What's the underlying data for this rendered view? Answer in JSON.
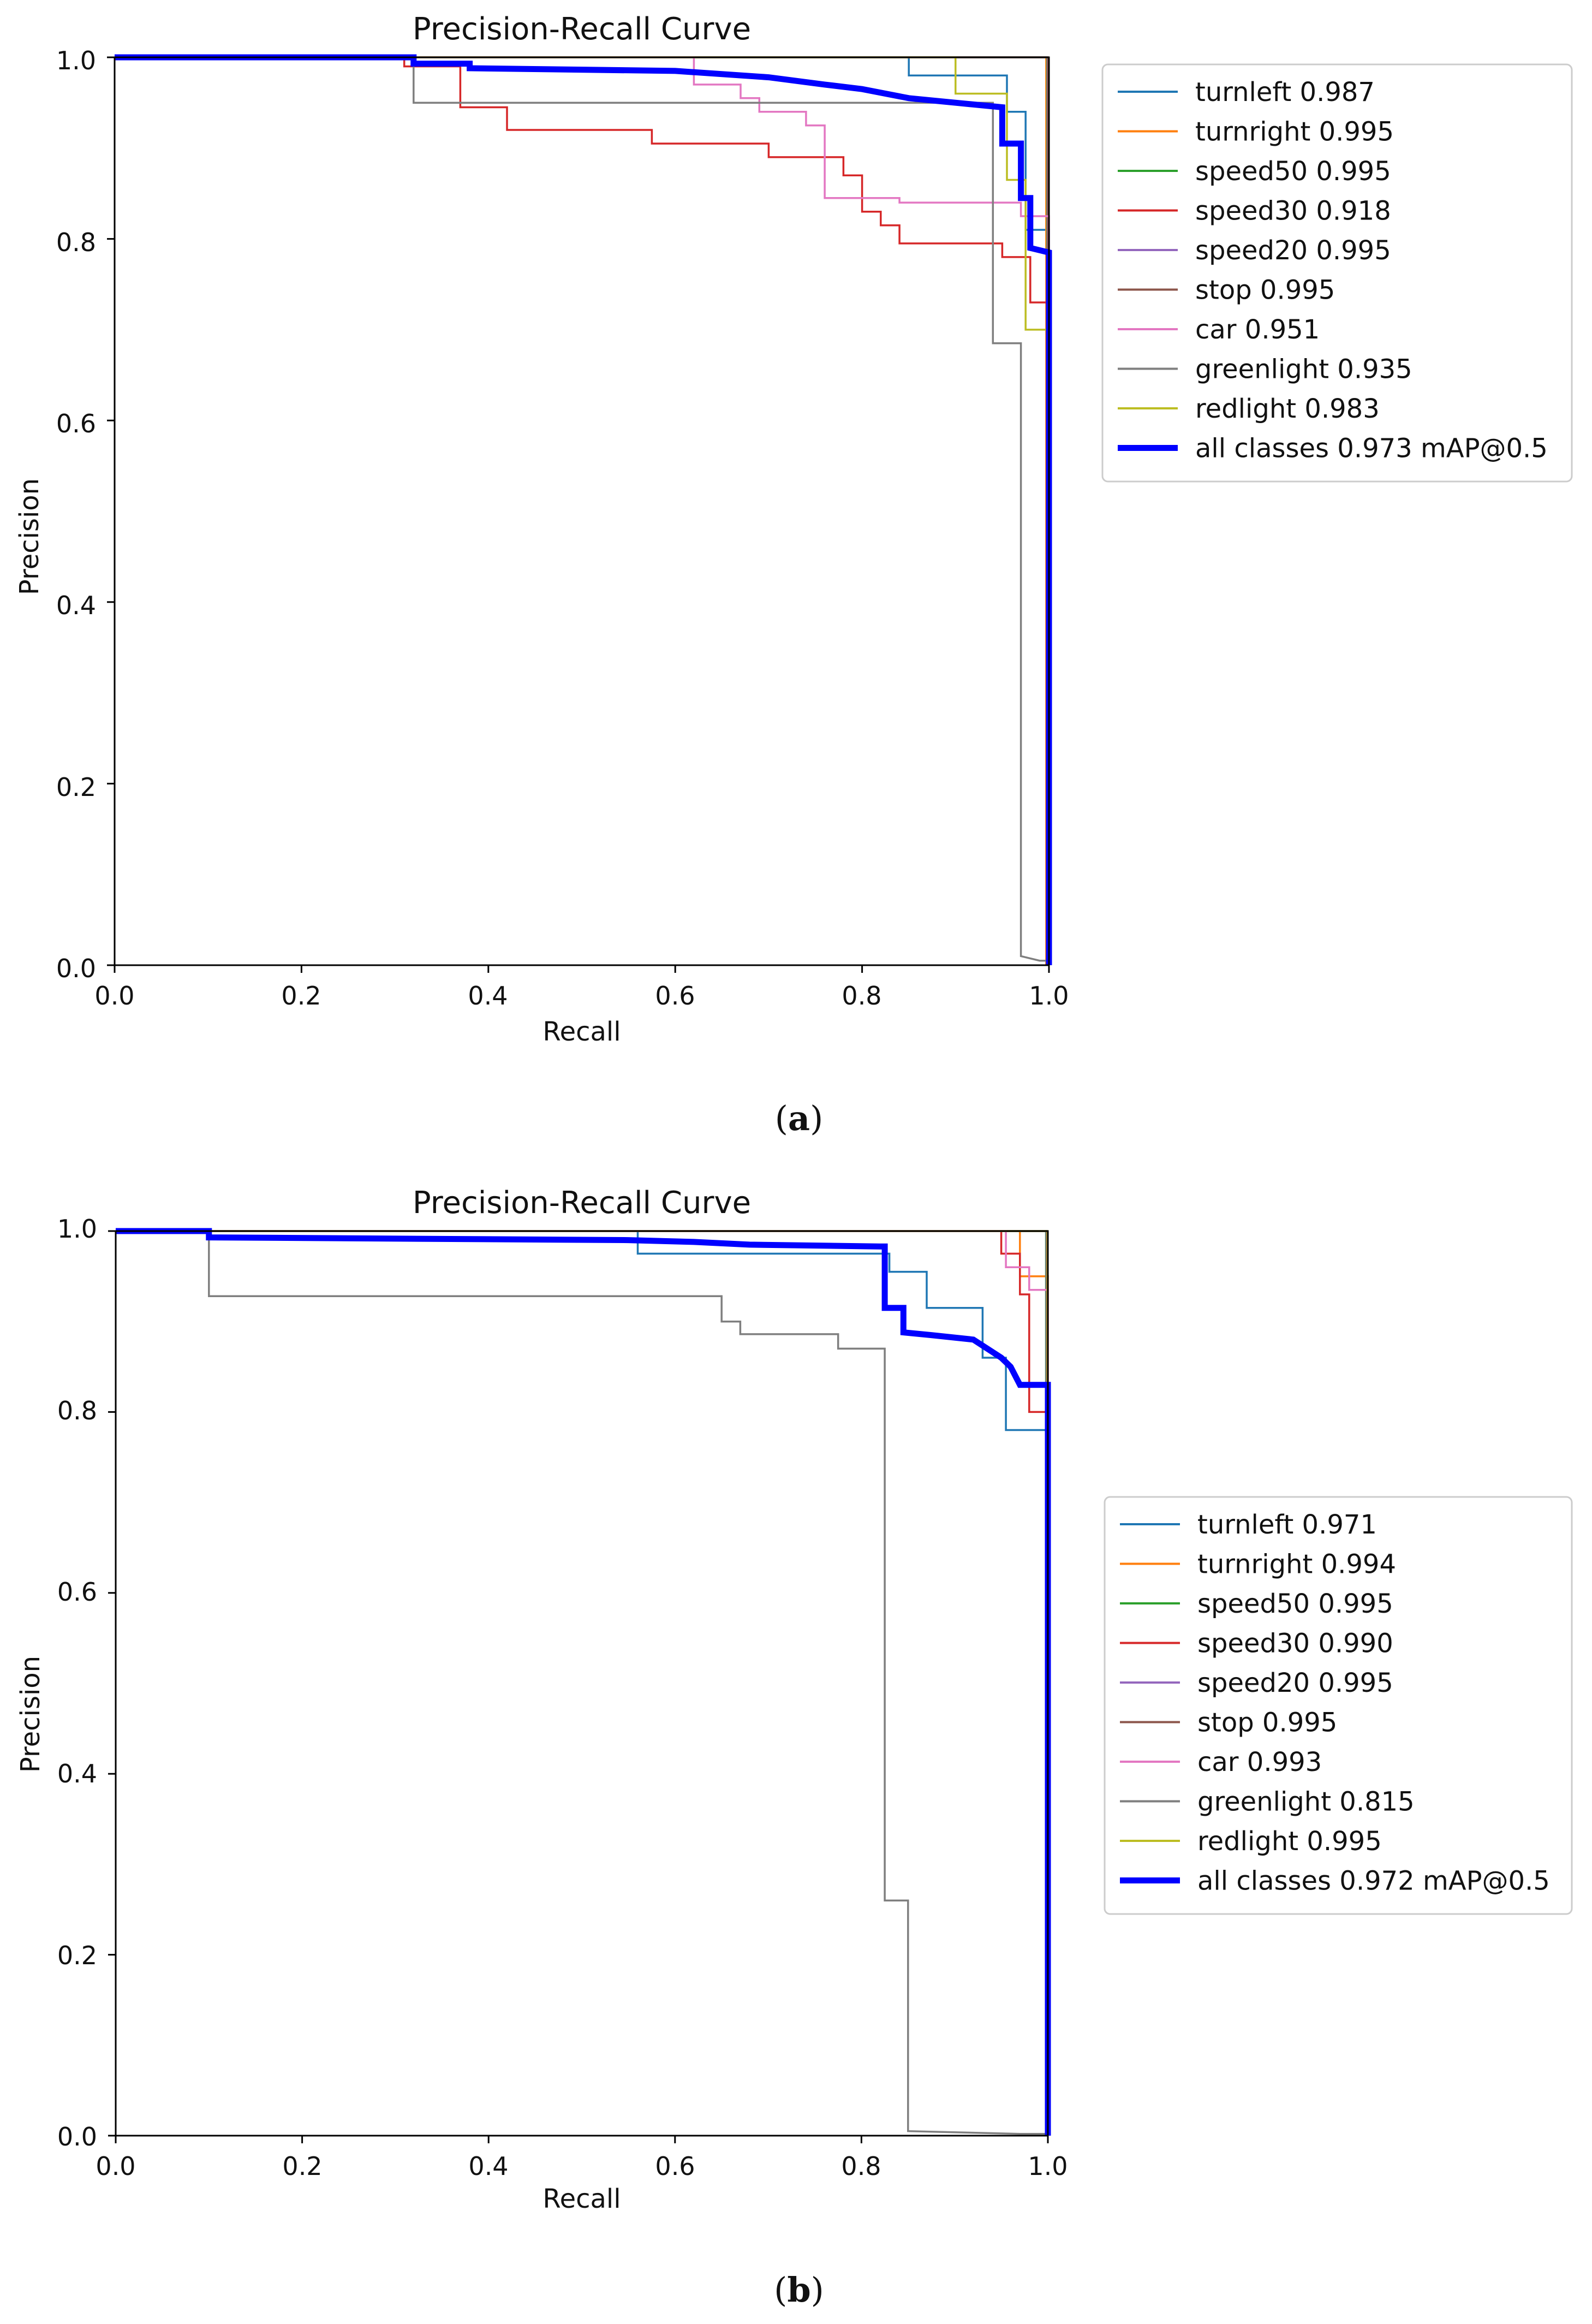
{
  "chart_data": [
    {
      "id": "a",
      "type": "line",
      "title": "Precision-Recall Curve",
      "xlabel": "Recall",
      "ylabel": "Precision",
      "xlim": [
        0,
        1
      ],
      "ylim": [
        0,
        1
      ],
      "xticks": [
        "0.0",
        "0.2",
        "0.4",
        "0.6",
        "0.8",
        "1.0"
      ],
      "yticks": [
        "0.0",
        "0.2",
        "0.4",
        "0.6",
        "0.8",
        "1.0"
      ],
      "caption": {
        "open": "(",
        "letter": "a",
        "close": ")"
      },
      "legend_position": "outside-right-top",
      "series": [
        {
          "name": "turnleft",
          "ap": "0.987",
          "color": "#1f77b4",
          "width": "thin",
          "points": [
            [
              0,
              1
            ],
            [
              0.85,
              1
            ],
            [
              0.85,
              0.98
            ],
            [
              0.955,
              0.98
            ],
            [
              0.955,
              0.94
            ],
            [
              0.975,
              0.94
            ],
            [
              0.975,
              0.81
            ],
            [
              1.0,
              0.81
            ],
            [
              1.0,
              0
            ]
          ]
        },
        {
          "name": "turnright",
          "ap": "0.995",
          "color": "#ff7f0e",
          "width": "thin",
          "points": [
            [
              0,
              1
            ],
            [
              0.997,
              1
            ],
            [
              0.997,
              0
            ]
          ]
        },
        {
          "name": "speed50",
          "ap": "0.995",
          "color": "#2ca02c",
          "width": "thin",
          "points": [
            [
              0,
              1
            ],
            [
              0.998,
              1
            ],
            [
              0.998,
              0
            ]
          ]
        },
        {
          "name": "speed30",
          "ap": "0.918",
          "color": "#d62728",
          "width": "thin",
          "points": [
            [
              0,
              1
            ],
            [
              0.31,
              1
            ],
            [
              0.31,
              0.99
            ],
            [
              0.37,
              0.99
            ],
            [
              0.37,
              0.945
            ],
            [
              0.42,
              0.945
            ],
            [
              0.42,
              0.92
            ],
            [
              0.575,
              0.92
            ],
            [
              0.575,
              0.905
            ],
            [
              0.7,
              0.905
            ],
            [
              0.7,
              0.89
            ],
            [
              0.78,
              0.89
            ],
            [
              0.78,
              0.87
            ],
            [
              0.8,
              0.87
            ],
            [
              0.8,
              0.83
            ],
            [
              0.82,
              0.83
            ],
            [
              0.82,
              0.815
            ],
            [
              0.84,
              0.815
            ],
            [
              0.84,
              0.795
            ],
            [
              0.95,
              0.795
            ],
            [
              0.95,
              0.78
            ],
            [
              0.98,
              0.78
            ],
            [
              0.98,
              0.73
            ],
            [
              1.0,
              0.73
            ],
            [
              1.0,
              0
            ]
          ]
        },
        {
          "name": "speed20",
          "ap": "0.995",
          "color": "#9467bd",
          "width": "thin",
          "points": [
            [
              0,
              1
            ],
            [
              0.9985,
              1
            ],
            [
              0.9985,
              0
            ]
          ]
        },
        {
          "name": "stop",
          "ap": "0.995",
          "color": "#8c564b",
          "width": "thin",
          "points": [
            [
              0,
              1
            ],
            [
              0.999,
              1
            ],
            [
              0.999,
              0
            ]
          ]
        },
        {
          "name": "car",
          "ap": "0.951",
          "color": "#e377c2",
          "width": "thin",
          "points": [
            [
              0,
              1
            ],
            [
              0.62,
              1
            ],
            [
              0.62,
              0.97
            ],
            [
              0.67,
              0.97
            ],
            [
              0.67,
              0.955
            ],
            [
              0.69,
              0.955
            ],
            [
              0.69,
              0.94
            ],
            [
              0.74,
              0.94
            ],
            [
              0.74,
              0.925
            ],
            [
              0.76,
              0.925
            ],
            [
              0.76,
              0.845
            ],
            [
              0.84,
              0.845
            ],
            [
              0.84,
              0.84
            ],
            [
              0.97,
              0.84
            ],
            [
              0.97,
              0.825
            ],
            [
              1.0,
              0.825
            ],
            [
              1.0,
              0
            ]
          ]
        },
        {
          "name": "greenlight",
          "ap": "0.935",
          "color": "#7f7f7f",
          "width": "thin",
          "points": [
            [
              0,
              1
            ],
            [
              0.32,
              1
            ],
            [
              0.32,
              0.95
            ],
            [
              0.94,
              0.95
            ],
            [
              0.94,
              0.685
            ],
            [
              0.97,
              0.685
            ],
            [
              0.97,
              0.01
            ],
            [
              0.99,
              0.005
            ],
            [
              1.0,
              0.005
            ],
            [
              1.0,
              0
            ]
          ]
        },
        {
          "name": "redlight",
          "ap": "0.983",
          "color": "#bcbd22",
          "width": "thin",
          "points": [
            [
              0,
              1
            ],
            [
              0.9,
              1
            ],
            [
              0.9,
              0.96
            ],
            [
              0.955,
              0.96
            ],
            [
              0.955,
              0.865
            ],
            [
              0.975,
              0.865
            ],
            [
              0.975,
              0.7
            ],
            [
              1.0,
              0.7
            ],
            [
              1.0,
              0
            ]
          ]
        },
        {
          "name": "all classes",
          "ap": "0.973 mAP@0.5",
          "color": "#0000ff",
          "width": "thick",
          "points": [
            [
              0,
              1
            ],
            [
              0.32,
              1
            ],
            [
              0.32,
              0.993
            ],
            [
              0.38,
              0.993
            ],
            [
              0.38,
              0.988
            ],
            [
              0.6,
              0.985
            ],
            [
              0.7,
              0.978
            ],
            [
              0.76,
              0.97
            ],
            [
              0.8,
              0.965
            ],
            [
              0.85,
              0.955
            ],
            [
              0.9,
              0.95
            ],
            [
              0.95,
              0.945
            ],
            [
              0.95,
              0.905
            ],
            [
              0.97,
              0.905
            ],
            [
              0.97,
              0.845
            ],
            [
              0.98,
              0.845
            ],
            [
              0.98,
              0.79
            ],
            [
              1.0,
              0.785
            ],
            [
              1.0,
              0
            ]
          ]
        }
      ]
    },
    {
      "id": "b",
      "type": "line",
      "title": "Precision-Recall Curve",
      "xlabel": "Recall",
      "ylabel": "Precision",
      "xlim": [
        0,
        1
      ],
      "ylim": [
        0,
        1
      ],
      "xticks": [
        "0.0",
        "0.2",
        "0.4",
        "0.6",
        "0.8",
        "1.0"
      ],
      "yticks": [
        "0.0",
        "0.2",
        "0.4",
        "0.6",
        "0.8",
        "1.0"
      ],
      "caption": {
        "open": "(",
        "letter": "b",
        "close": ")"
      },
      "legend_position": "outside-right-middle",
      "series": [
        {
          "name": "turnleft",
          "ap": "0.971",
          "color": "#1f77b4",
          "width": "thin",
          "points": [
            [
              0,
              1
            ],
            [
              0.56,
              1
            ],
            [
              0.56,
              0.975
            ],
            [
              0.83,
              0.975
            ],
            [
              0.83,
              0.955
            ],
            [
              0.87,
              0.955
            ],
            [
              0.87,
              0.915
            ],
            [
              0.93,
              0.915
            ],
            [
              0.93,
              0.86
            ],
            [
              0.955,
              0.86
            ],
            [
              0.955,
              0.78
            ],
            [
              1.0,
              0.78
            ],
            [
              1.0,
              0
            ]
          ]
        },
        {
          "name": "turnright",
          "ap": "0.994",
          "color": "#ff7f0e",
          "width": "thin",
          "points": [
            [
              0,
              1
            ],
            [
              0.97,
              1
            ],
            [
              0.97,
              0.95
            ],
            [
              1.0,
              0.95
            ],
            [
              1.0,
              0
            ]
          ]
        },
        {
          "name": "speed50",
          "ap": "0.995",
          "color": "#2ca02c",
          "width": "thin",
          "points": [
            [
              0,
              1
            ],
            [
              0.998,
              1
            ],
            [
              0.998,
              0
            ]
          ]
        },
        {
          "name": "speed30",
          "ap": "0.990",
          "color": "#d62728",
          "width": "thin",
          "points": [
            [
              0,
              1
            ],
            [
              0.95,
              1
            ],
            [
              0.95,
              0.975
            ],
            [
              0.97,
              0.975
            ],
            [
              0.97,
              0.93
            ],
            [
              0.98,
              0.93
            ],
            [
              0.98,
              0.8
            ],
            [
              1.0,
              0.8
            ],
            [
              1.0,
              0
            ]
          ]
        },
        {
          "name": "speed20",
          "ap": "0.995",
          "color": "#9467bd",
          "width": "thin",
          "points": [
            [
              0,
              1
            ],
            [
              0.9985,
              1
            ],
            [
              0.9985,
              0
            ]
          ]
        },
        {
          "name": "stop",
          "ap": "0.995",
          "color": "#8c564b",
          "width": "thin",
          "points": [
            [
              0,
              1
            ],
            [
              0.999,
              1
            ],
            [
              0.999,
              0
            ]
          ]
        },
        {
          "name": "car",
          "ap": "0.993",
          "color": "#e377c2",
          "width": "thin",
          "points": [
            [
              0,
              1
            ],
            [
              0.955,
              1
            ],
            [
              0.955,
              0.96
            ],
            [
              0.98,
              0.96
            ],
            [
              0.98,
              0.935
            ],
            [
              1.0,
              0.935
            ],
            [
              1.0,
              0
            ]
          ]
        },
        {
          "name": "greenlight",
          "ap": "0.815",
          "color": "#7f7f7f",
          "width": "thin",
          "points": [
            [
              0,
              1
            ],
            [
              0.1,
              1
            ],
            [
              0.1,
              0.928
            ],
            [
              0.65,
              0.928
            ],
            [
              0.65,
              0.9
            ],
            [
              0.67,
              0.9
            ],
            [
              0.67,
              0.886
            ],
            [
              0.775,
              0.886
            ],
            [
              0.775,
              0.87
            ],
            [
              0.825,
              0.87
            ],
            [
              0.825,
              0.26
            ],
            [
              0.85,
              0.26
            ],
            [
              0.85,
              0.005
            ],
            [
              0.97,
              0.002
            ],
            [
              1.0,
              0.002
            ],
            [
              1.0,
              0
            ]
          ]
        },
        {
          "name": "redlight",
          "ap": "0.995",
          "color": "#bcbd22",
          "width": "thin",
          "points": [
            [
              0,
              1
            ],
            [
              0.9995,
              1
            ],
            [
              0.9995,
              0
            ]
          ]
        },
        {
          "name": "all classes",
          "ap": "0.972  mAP@0.5",
          "color": "#0000ff",
          "width": "thick",
          "points": [
            [
              0,
              1
            ],
            [
              0.1,
              1
            ],
            [
              0.1,
              0.993
            ],
            [
              0.55,
              0.99
            ],
            [
              0.62,
              0.988
            ],
            [
              0.68,
              0.985
            ],
            [
              0.82,
              0.983
            ],
            [
              0.825,
              0.983
            ],
            [
              0.825,
              0.915
            ],
            [
              0.845,
              0.915
            ],
            [
              0.845,
              0.888
            ],
            [
              0.875,
              0.885
            ],
            [
              0.92,
              0.88
            ],
            [
              0.935,
              0.87
            ],
            [
              0.95,
              0.86
            ],
            [
              0.96,
              0.85
            ],
            [
              0.97,
              0.83
            ],
            [
              1.0,
              0.83
            ],
            [
              1.0,
              0
            ]
          ]
        }
      ]
    }
  ]
}
